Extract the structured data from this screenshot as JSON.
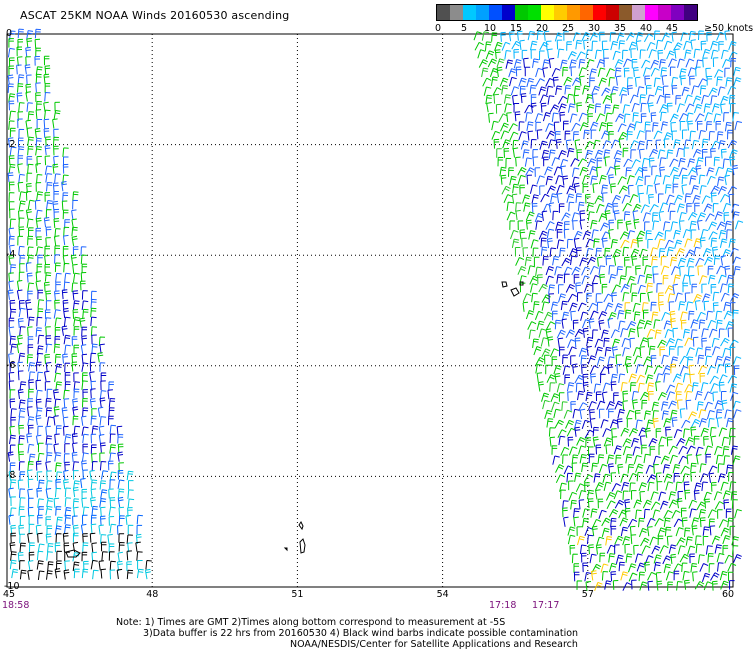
{
  "title": "ASCAT 25KM NOAA Winds 20160530 ascending",
  "legend": {
    "colors": [
      "#404040",
      "#8c8c8c",
      "#00b4ff",
      "#009cff",
      "#0000c8",
      "#006ee6",
      "#00c800",
      "#28c828",
      "#ffff00",
      "#ffa000",
      "#ff6400",
      "#ff0000",
      "#c80000",
      "#8b5a2b",
      "#c8a0c8",
      "#c800c8",
      "#a000ff",
      "#640096",
      "#5a00a0",
      "#3c0078"
    ],
    "ticks": [
      "0",
      "5",
      "10",
      "15",
      "20",
      "25",
      "30",
      "35",
      "40",
      "45",
      "≥50 knots"
    ]
  },
  "map": {
    "lat_labels": [
      "0",
      "-2",
      "-4",
      "-6",
      "-8",
      "-10"
    ],
    "lon_labels": [
      "45",
      "48",
      "51",
      "54",
      "57",
      "60"
    ],
    "lon_range": [
      45,
      60
    ],
    "lat_range": [
      -10,
      0
    ],
    "swath_times": [
      "18:58",
      "17:18",
      "17:17"
    ]
  },
  "notes": [
    "Note: 1) Times are GMT 2)Times along bottom correspond to measurement at -5S",
    "3)Data buffer is 22 hrs from 20160530 4) Black wind barbs indicate possible contamination",
    "NOAA/NESDIS/Center for Satellite Applications and Research"
  ]
}
